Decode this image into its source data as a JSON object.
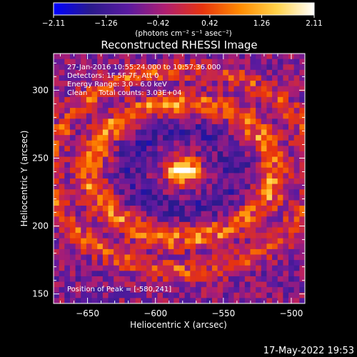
{
  "chart_data": {
    "type": "heatmap",
    "title": "Reconstructed RHESSI Image",
    "xlabel": "Heliocentric X (arcsec)",
    "ylabel": "Heliocentric Y (arcsec)",
    "xlim": [
      -675,
      -490
    ],
    "ylim": [
      143,
      327
    ],
    "x_ticks": [
      -650,
      -600,
      -550,
      -500
    ],
    "x_tick_labels": [
      "−650",
      "−600",
      "−550",
      "−500"
    ],
    "y_ticks": [
      150,
      200,
      250,
      300
    ],
    "y_tick_labels": [
      "150",
      "200",
      "250",
      "300"
    ],
    "colorbar": {
      "min": -2.11,
      "max": 2.11,
      "ticks": [
        -2.11,
        -1.26,
        -0.42,
        0.42,
        1.26,
        2.11
      ],
      "tick_labels": [
        "−2.11",
        "−1.26",
        "−0.42",
        "0.42",
        "1.26",
        "2.11"
      ],
      "units": "(photons cm⁻² s⁻¹ asec⁻²)",
      "colors": [
        "#0000ff",
        "#2a1a8c",
        "#5a1aa0",
        "#b01e70",
        "#e8340e",
        "#ff8a00",
        "#ffd24a",
        "#ffffff"
      ]
    },
    "peak": {
      "x": -580,
      "y": 241,
      "value": 2.11
    },
    "grid": false,
    "annotations": [
      "27-Jan-2016 10:55:24.000 to 10:57:36.000",
      "Detectors: 1F 5F 7F, Att 0",
      "Energy Range: 3.0 - 6.0 keV",
      "Clean     Total counts: 3.03E+04"
    ],
    "peak_label": "Position of Peak = [-580,241]"
  },
  "footer": {
    "timestamp": "17-May-2022 19:53"
  }
}
